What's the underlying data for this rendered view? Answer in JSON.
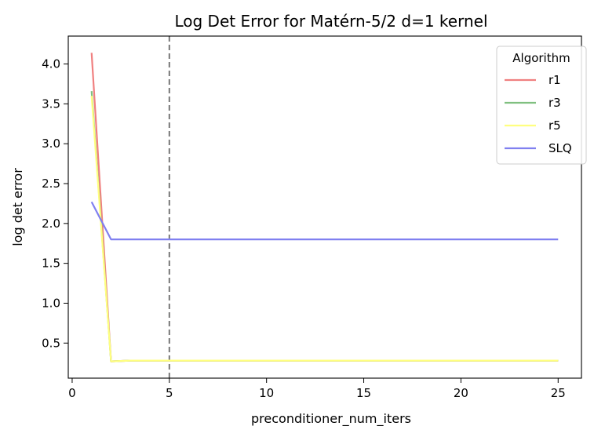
{
  "chart_data": {
    "type": "line",
    "title": "Log Det Error for Matérn-5/2 d=1 kernel",
    "xlabel": "preconditioner_num_iters",
    "ylabel": "log det error",
    "xlim": [
      -0.2,
      26.2
    ],
    "ylim": [
      0.06,
      4.35
    ],
    "xticks": [
      0,
      5,
      10,
      15,
      20,
      25
    ],
    "yticks": [
      0.5,
      1.0,
      1.5,
      2.0,
      2.5,
      3.0,
      3.5,
      4.0
    ],
    "xtick_labels": [
      "0",
      "5",
      "10",
      "15",
      "20",
      "25"
    ],
    "ytick_labels": [
      "0.5",
      "1.0",
      "1.5",
      "2.0",
      "2.5",
      "3.0",
      "3.5",
      "4.0"
    ],
    "grid": false,
    "vline": {
      "x": 5,
      "color": "#777777",
      "style": "dashed"
    },
    "legend": {
      "title": "Algorithm",
      "placement": "top-right"
    },
    "x": [
      1,
      2,
      3,
      4,
      5,
      6,
      7,
      8,
      9,
      10,
      11,
      12,
      13,
      14,
      15,
      16,
      17,
      18,
      19,
      20,
      21,
      22,
      23,
      24,
      25
    ],
    "series": [
      {
        "name": "r1",
        "color": "#f08080",
        "values": [
          4.14,
          0.27,
          0.28,
          0.28,
          0.28,
          0.28,
          0.28,
          0.28,
          0.28,
          0.28,
          0.28,
          0.28,
          0.28,
          0.28,
          0.28,
          0.28,
          0.28,
          0.28,
          0.28,
          0.28,
          0.28,
          0.28,
          0.28,
          0.28,
          0.28
        ]
      },
      {
        "name": "r3",
        "color": "#80c080",
        "values": [
          3.66,
          0.27,
          0.28,
          0.28,
          0.28,
          0.28,
          0.28,
          0.28,
          0.28,
          0.28,
          0.28,
          0.28,
          0.28,
          0.28,
          0.28,
          0.28,
          0.28,
          0.28,
          0.28,
          0.28,
          0.28,
          0.28,
          0.28,
          0.28,
          0.28
        ]
      },
      {
        "name": "r5",
        "color": "#ffff80",
        "values": [
          3.6,
          0.27,
          0.28,
          0.28,
          0.28,
          0.28,
          0.28,
          0.28,
          0.28,
          0.28,
          0.28,
          0.28,
          0.28,
          0.28,
          0.28,
          0.28,
          0.28,
          0.28,
          0.28,
          0.28,
          0.28,
          0.28,
          0.28,
          0.28,
          0.28
        ]
      },
      {
        "name": "SLQ",
        "color": "#8080f0",
        "values": [
          2.27,
          1.8,
          1.8,
          1.8,
          1.8,
          1.8,
          1.8,
          1.8,
          1.8,
          1.8,
          1.8,
          1.8,
          1.8,
          1.8,
          1.8,
          1.8,
          1.8,
          1.8,
          1.8,
          1.8,
          1.8,
          1.8,
          1.8,
          1.8,
          1.8
        ]
      }
    ]
  }
}
